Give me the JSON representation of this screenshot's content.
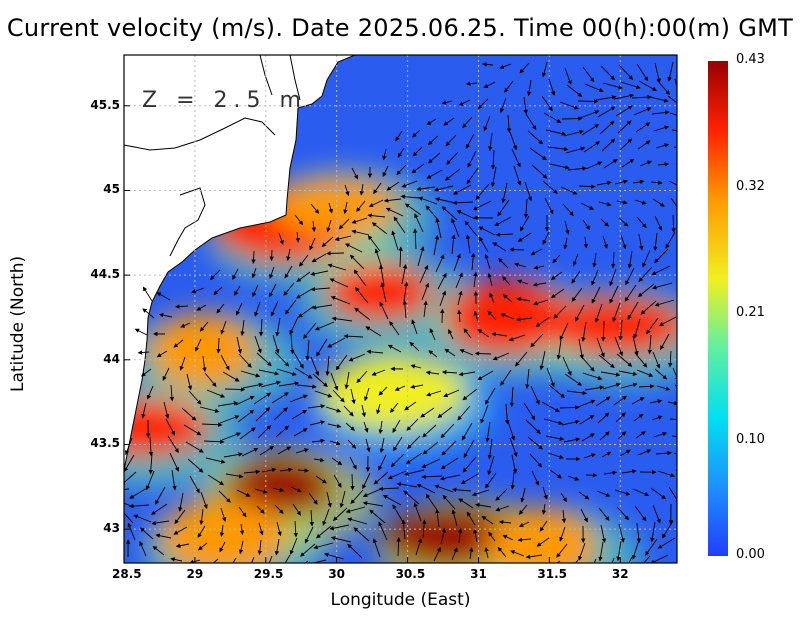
{
  "title": "Current velocity (m/s). Date 2025.06.25. Time 00(h):00(m) GMT",
  "depth_label": "Z = 2.5 m",
  "xlabel": "Longitude (East)",
  "ylabel": "Latitude (North)",
  "x_ticks": [
    "28.5",
    "29",
    "29.5",
    "30",
    "30.5",
    "31",
    "31.5",
    "32"
  ],
  "y_ticks": [
    "45.5",
    "45",
    "44.5",
    "44",
    "43.5",
    "43"
  ],
  "colorbar": {
    "labels": [
      "0.43",
      "0.32",
      "0.21",
      "0.10",
      "0.00"
    ],
    "min": 0.0,
    "max": 0.43,
    "colors": [
      "#1f3fff",
      "#1e90ff",
      "#00e0f0",
      "#60f0a0",
      "#f0f020",
      "#ff9900",
      "#ff2200",
      "#990000"
    ]
  },
  "map_extent": {
    "lon_min": 28.5,
    "lon_max": 32.4,
    "lat_min": 42.8,
    "lat_max": 45.8
  },
  "hot_spots": [
    {
      "lon": 29.6,
      "lat": 43.25,
      "speed": 0.4
    },
    {
      "lon": 29.2,
      "lat": 42.95,
      "speed": 0.33
    },
    {
      "lon": 30.85,
      "lat": 42.95,
      "speed": 0.4
    },
    {
      "lon": 31.45,
      "lat": 42.9,
      "speed": 0.3
    },
    {
      "lon": 28.65,
      "lat": 43.6,
      "speed": 0.38
    },
    {
      "lon": 29.65,
      "lat": 44.8,
      "speed": 0.36
    },
    {
      "lon": 30.3,
      "lat": 44.4,
      "speed": 0.38
    },
    {
      "lon": 31.2,
      "lat": 44.25,
      "speed": 0.36
    },
    {
      "lon": 31.95,
      "lat": 44.2,
      "speed": 0.34
    },
    {
      "lon": 29.05,
      "lat": 44.05,
      "speed": 0.3
    },
    {
      "lon": 30.0,
      "lat": 44.9,
      "speed": 0.28
    },
    {
      "lon": 30.4,
      "lat": 43.8,
      "speed": 0.22
    }
  ]
}
